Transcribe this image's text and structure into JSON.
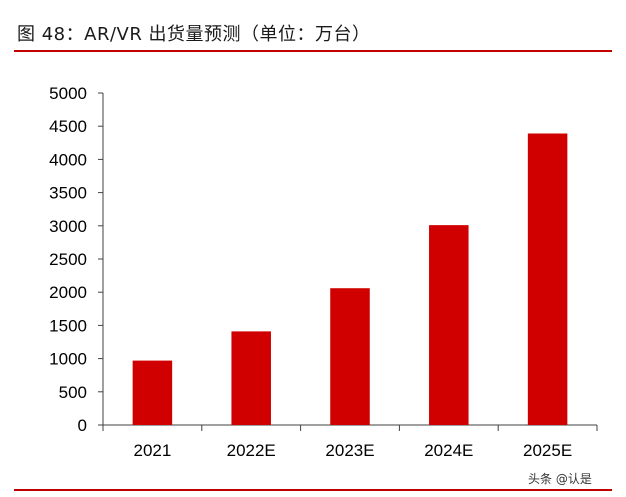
{
  "header": {
    "title": "图 48：AR/VR 出货量预测（单位：万台）"
  },
  "watermark": "头条 @认是",
  "colors": {
    "bar": "#d00000",
    "rule": "#c00000",
    "axis": "#404040"
  },
  "chart_data": {
    "type": "bar",
    "title": "",
    "xlabel": "",
    "ylabel": "",
    "categories": [
      "2021",
      "2022E",
      "2023E",
      "2024E",
      "2025E"
    ],
    "values": [
      970,
      1410,
      2060,
      3010,
      4390
    ],
    "ylim": [
      0,
      5000
    ],
    "yticks": [
      0,
      500,
      1000,
      1500,
      2000,
      2500,
      3000,
      3500,
      4000,
      4500,
      5000
    ],
    "grid": false,
    "legend": "none"
  }
}
